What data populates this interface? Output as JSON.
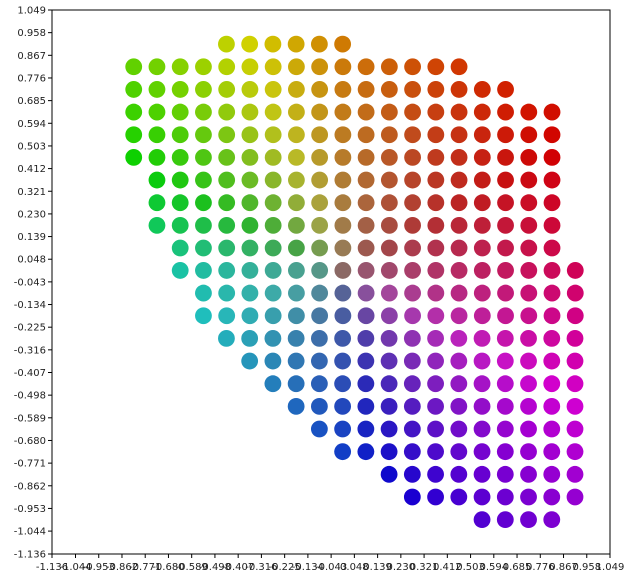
{
  "chart_data": {
    "type": "scatter",
    "title": "",
    "xlabel": "",
    "ylabel": "",
    "xlim": [
      -1.136,
      1.049
    ],
    "ylim": [
      -1.136,
      1.049
    ],
    "grid": false,
    "legend": "none",
    "x_ticks": [
      "-1.136",
      "-1.044",
      "-0.953",
      "-0.862",
      "-0.771",
      "-0.680",
      "-0.589",
      "-0.498",
      "-0.407",
      "-0.316",
      "-0.225",
      "-0.134",
      "-0.043",
      "0.048",
      "0.139",
      "0.230",
      "0.321",
      "0.412",
      "0.503",
      "0.594",
      "0.685",
      "0.776",
      "0.867",
      "0.958",
      "1.049"
    ],
    "y_ticks": [
      "-1.136",
      "-1.044",
      "-0.953",
      "-0.862",
      "-0.771",
      "-0.680",
      "-0.589",
      "-0.498",
      "-0.407",
      "-0.316",
      "-0.225",
      "-0.134",
      "-0.043",
      "0.048",
      "0.139",
      "0.230",
      "0.321",
      "0.412",
      "0.503",
      "0.594",
      "0.685",
      "0.776",
      "0.867",
      "0.958",
      "1.049"
    ],
    "grid_step": 0.091,
    "row_ys": [
      0.912,
      0.821,
      0.73,
      0.639,
      0.548,
      0.457,
      0.366,
      0.275,
      0.184,
      0.093,
      0.003,
      -0.088,
      -0.179,
      -0.27,
      -0.361,
      -0.452,
      -0.543,
      -0.634,
      -0.725,
      -0.816,
      -0.907,
      -0.998
    ],
    "rows": [
      {
        "x_start": -0.453,
        "count": 6
      },
      {
        "x_start": -0.816,
        "count": 15
      },
      {
        "x_start": -0.816,
        "count": 17
      },
      {
        "x_start": -0.816,
        "count": 19
      },
      {
        "x_start": -0.816,
        "count": 19
      },
      {
        "x_start": -0.816,
        "count": 19
      },
      {
        "x_start": -0.725,
        "count": 18
      },
      {
        "x_start": -0.725,
        "count": 18
      },
      {
        "x_start": -0.725,
        "count": 18
      },
      {
        "x_start": -0.634,
        "count": 17
      },
      {
        "x_start": -0.634,
        "count": 18
      },
      {
        "x_start": -0.543,
        "count": 17
      },
      {
        "x_start": -0.543,
        "count": 17
      },
      {
        "x_start": -0.453,
        "count": 16
      },
      {
        "x_start": -0.362,
        "count": 15
      },
      {
        "x_start": -0.271,
        "count": 14
      },
      {
        "x_start": -0.18,
        "count": 13
      },
      {
        "x_start": -0.089,
        "count": 12
      },
      {
        "x_start": 0.002,
        "count": 11
      },
      {
        "x_start": 0.184,
        "count": 9
      },
      {
        "x_start": 0.275,
        "count": 8
      },
      {
        "x_start": 0.548,
        "count": 4
      }
    ],
    "color_anchors": {
      "green": "#009000",
      "olive": "#8a7a00",
      "red": "#ff0000",
      "magenta": "#ee00dd",
      "blue": "#0070ff",
      "teal": "#00959a",
      "violet": "#8800ff"
    }
  }
}
